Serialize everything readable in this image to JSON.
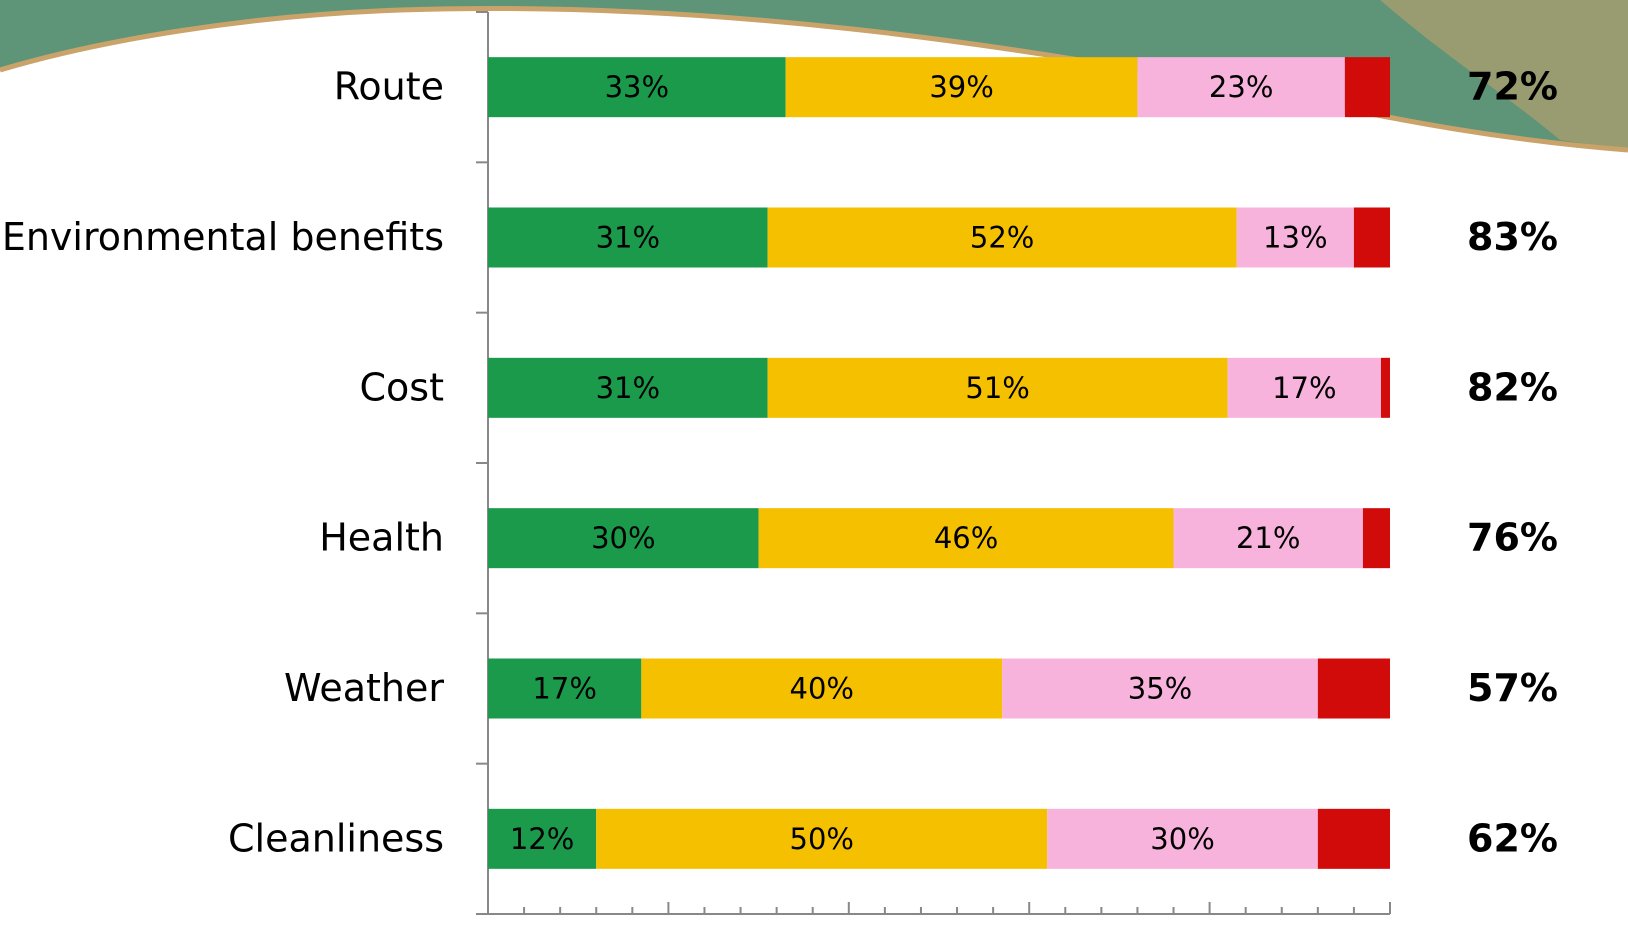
{
  "chart_data": {
    "type": "stacked-bar-horizontal",
    "categories": [
      "Route",
      "Environmental benefits",
      "Cost",
      "Health",
      "Weather",
      "Cleanliness"
    ],
    "series": [
      {
        "color": "#1a9a4a",
        "values": [
          33,
          31,
          31,
          30,
          17,
          12
        ],
        "value_labels": [
          "33%",
          "31%",
          "31%",
          "30%",
          "17%",
          "12%"
        ]
      },
      {
        "color": "#f4c000",
        "values": [
          39,
          52,
          51,
          46,
          40,
          50
        ],
        "value_labels": [
          "39%",
          "52%",
          "51%",
          "46%",
          "40%",
          "50%"
        ]
      },
      {
        "color": "#f7b3dc",
        "values": [
          23,
          13,
          17,
          21,
          35,
          30
        ],
        "value_labels": [
          "23%",
          "13%",
          "17%",
          "21%",
          "35%",
          "30%"
        ]
      },
      {
        "color": "#d10a0a",
        "values": [
          5,
          4,
          1,
          3,
          8,
          8
        ]
      }
    ],
    "totals": {
      "values": [
        72,
        83,
        82,
        76,
        57,
        62
      ],
      "value_labels": [
        "72%",
        "83%",
        "82%",
        "76%",
        "57%",
        "62%"
      ]
    },
    "xlim": [
      0,
      100
    ],
    "xticks": [
      0,
      4,
      8,
      12,
      16,
      20,
      24,
      28,
      32,
      36,
      40,
      44,
      48,
      52,
      56,
      60,
      64,
      68,
      72,
      76,
      80,
      84,
      88,
      92,
      96,
      100
    ]
  }
}
